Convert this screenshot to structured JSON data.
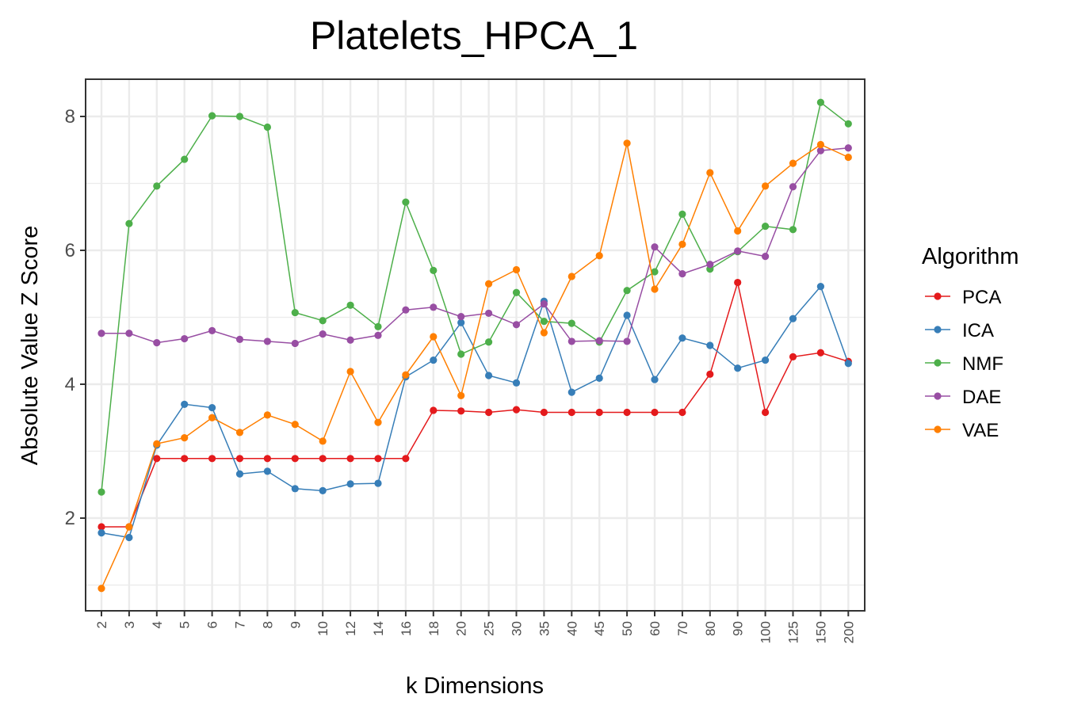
{
  "chart_data": {
    "type": "line",
    "title": "Platelets_HPCA_1",
    "xlabel": "k Dimensions",
    "ylabel": "Absolute Value Z Score",
    "categories": [
      "2",
      "3",
      "4",
      "5",
      "6",
      "7",
      "8",
      "9",
      "10",
      "12",
      "14",
      "16",
      "18",
      "20",
      "25",
      "30",
      "35",
      "40",
      "45",
      "50",
      "60",
      "70",
      "80",
      "90",
      "100",
      "125",
      "150",
      "200"
    ],
    "ylim": [
      0.7,
      8.6
    ],
    "yticks": [
      2,
      4,
      6,
      8
    ],
    "grid": true,
    "legend": {
      "title": "Algorithm",
      "placement": "right"
    },
    "series": [
      {
        "name": "PCA",
        "color": "#e41a1c",
        "values": [
          1.87,
          1.87,
          2.89,
          2.89,
          2.89,
          2.89,
          2.89,
          2.89,
          2.89,
          2.89,
          2.89,
          2.89,
          3.61,
          3.6,
          3.58,
          3.62,
          3.58,
          3.58,
          3.58,
          3.58,
          3.58,
          3.58,
          4.15,
          5.52,
          3.58,
          4.41,
          4.47,
          4.34
        ]
      },
      {
        "name": "ICA",
        "color": "#377eb8",
        "values": [
          1.78,
          1.71,
          3.09,
          3.7,
          3.65,
          2.66,
          2.7,
          2.44,
          2.41,
          2.51,
          2.52,
          4.11,
          4.36,
          4.92,
          4.13,
          4.02,
          5.24,
          3.88,
          4.09,
          5.03,
          4.07,
          4.69,
          4.58,
          4.24,
          4.36,
          4.98,
          5.46,
          4.31
        ]
      },
      {
        "name": "NMF",
        "color": "#4daf4a",
        "values": [
          2.39,
          6.4,
          6.96,
          7.36,
          8.01,
          8.0,
          7.84,
          5.07,
          4.95,
          5.18,
          4.86,
          6.72,
          5.7,
          4.45,
          4.63,
          5.37,
          4.94,
          4.91,
          4.63,
          5.4,
          5.68,
          6.54,
          5.72,
          5.98,
          6.36,
          6.31,
          8.21,
          7.89
        ]
      },
      {
        "name": "DAE",
        "color": "#984ea3",
        "values": [
          4.76,
          4.76,
          4.62,
          4.68,
          4.8,
          4.67,
          4.64,
          4.61,
          4.75,
          4.66,
          4.73,
          5.11,
          5.15,
          5.01,
          5.06,
          4.89,
          5.2,
          4.64,
          4.65,
          4.64,
          6.05,
          5.65,
          5.79,
          5.99,
          5.91,
          6.95,
          7.49,
          7.53
        ]
      },
      {
        "name": "VAE",
        "color": "#ff7f00",
        "values": [
          0.95,
          1.87,
          3.11,
          3.2,
          3.5,
          3.28,
          3.54,
          3.4,
          3.15,
          4.19,
          3.43,
          4.14,
          4.71,
          3.83,
          5.5,
          5.71,
          4.77,
          5.61,
          5.92,
          7.6,
          5.42,
          6.09,
          7.16,
          6.29,
          6.96,
          7.3,
          7.58,
          7.39
        ]
      }
    ]
  }
}
